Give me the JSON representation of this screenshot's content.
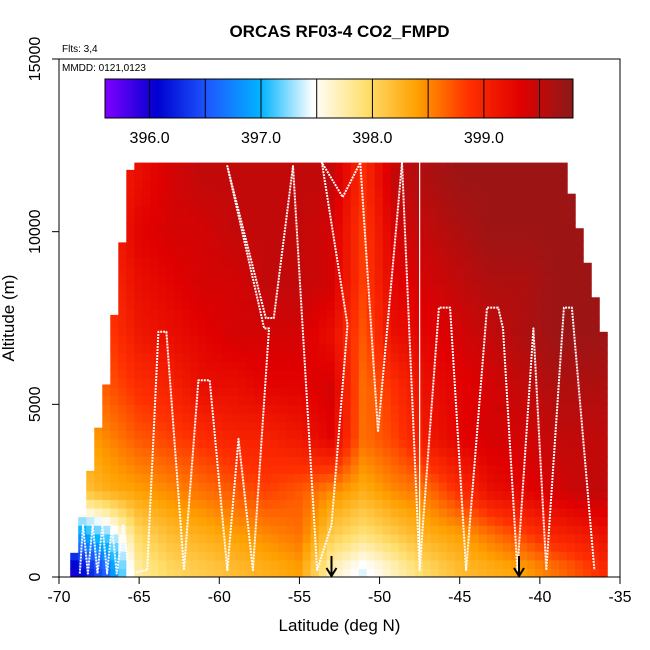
{
  "chart_data": {
    "type": "heatmap",
    "title": "ORCAS RF03-4 CO2_FMPD",
    "flights_note": "Flts: 3,4",
    "date_note": "MMDD: 0121,0123",
    "xlabel": "Latitude (deg N)",
    "ylabel": "Altitude (m)",
    "xlim": [
      -70,
      -35
    ],
    "ylim": [
      0,
      15000
    ],
    "x_ticks": [
      -70,
      -65,
      -60,
      -55,
      -50,
      -45,
      -40,
      -35
    ],
    "x_tick_labels": [
      "-70",
      "-65",
      "-60",
      "-55",
      "-50",
      "-45",
      "-40",
      "-35"
    ],
    "y_ticks": [
      0,
      5000,
      10000,
      15000
    ],
    "y_tick_labels": [
      "0",
      "5000",
      "10000",
      "15000"
    ],
    "grid": false,
    "colorbar": {
      "placement": "top-inside",
      "min": 395.6,
      "max": 399.8,
      "ticks": [
        396.0,
        397.0,
        398.0,
        399.0
      ],
      "tick_labels": [
        "396.0",
        "397.0",
        "398.0",
        "399.0"
      ],
      "colors": [
        "#7f00ff",
        "#0000d0",
        "#1e5aff",
        "#00b4ff",
        "#ffffff",
        "#ffe070",
        "#ffa000",
        "#ff3000",
        "#e00000",
        "#8b1a1a"
      ]
    },
    "field": {
      "x": [
        -69,
        -67,
        -65,
        -63,
        -61,
        -59,
        -57,
        -55,
        -53,
        -51,
        -49,
        -47,
        -45,
        -43,
        -41,
        -39,
        -37,
        -35.5
      ],
      "y": [
        250,
        1250,
        2500,
        4000,
        5500,
        7000,
        8500,
        10000,
        11500
      ],
      "values": [
        [
          396.0,
          396.6,
          397.8,
          398.0,
          398.1,
          398.2,
          398.3,
          398.4,
          397.7,
          397.4,
          397.7,
          398.0,
          398.2,
          398.3,
          398.4,
          398.6,
          398.8,
          399.0
        ],
        [
          396.8,
          397.2,
          398.0,
          398.2,
          398.3,
          398.4,
          398.5,
          398.6,
          398.1,
          397.9,
          398.1,
          398.3,
          398.4,
          398.6,
          398.8,
          399.0,
          399.1,
          399.2
        ],
        [
          398.1,
          398.3,
          398.4,
          398.5,
          398.6,
          398.7,
          398.8,
          398.7,
          398.5,
          398.3,
          398.5,
          398.6,
          398.9,
          399.2,
          399.3,
          399.4,
          399.5,
          399.5
        ],
        [
          398.3,
          398.5,
          398.7,
          398.8,
          398.9,
          399.0,
          399.0,
          399.1,
          399.3,
          398.6,
          398.8,
          399.1,
          399.3,
          399.4,
          399.4,
          399.5,
          399.5,
          399.5
        ],
        [
          398.4,
          398.7,
          398.9,
          399.0,
          399.2,
          399.2,
          399.3,
          399.3,
          399.4,
          398.6,
          398.9,
          399.2,
          399.3,
          399.4,
          399.5,
          399.6,
          399.6,
          399.6
        ],
        [
          398.5,
          398.8,
          399.1,
          399.2,
          399.3,
          399.4,
          399.4,
          399.4,
          399.2,
          398.7,
          399.2,
          399.3,
          399.4,
          399.5,
          399.6,
          399.7,
          399.7,
          399.7
        ],
        [
          398.6,
          398.9,
          399.2,
          399.3,
          399.4,
          399.4,
          399.5,
          399.5,
          399.4,
          398.8,
          399.3,
          399.4,
          399.5,
          399.6,
          399.6,
          399.7,
          399.7,
          399.7
        ],
        [
          398.7,
          399.0,
          399.3,
          399.4,
          399.4,
          399.5,
          399.5,
          399.5,
          399.4,
          398.8,
          399.4,
          399.5,
          399.6,
          399.7,
          399.7,
          399.7,
          399.7,
          399.7
        ],
        [
          398.7,
          399.0,
          399.2,
          399.4,
          399.5,
          399.5,
          399.5,
          399.5,
          399.5,
          398.9,
          399.5,
          399.6,
          399.7,
          399.7,
          399.7,
          399.7,
          399.7,
          399.7
        ]
      ]
    },
    "flight_track": {
      "color": "#ffffff",
      "points": [
        [
          -68.7,
          100
        ],
        [
          -68.5,
          1500
        ],
        [
          -68.2,
          100
        ],
        [
          -67.9,
          1500
        ],
        [
          -67.6,
          100
        ],
        [
          -67.3,
          1500
        ],
        [
          -67.0,
          100
        ],
        [
          -66.7,
          1500
        ],
        [
          -66.4,
          100
        ],
        [
          -66.0,
          1500
        ],
        [
          -65.6,
          100
        ],
        [
          -64.5,
          200
        ],
        [
          -63.8,
          7100
        ],
        [
          -63.3,
          7100
        ],
        [
          -62.2,
          200
        ],
        [
          -61.3,
          5700
        ],
        [
          -60.6,
          5700
        ],
        [
          -59.5,
          200
        ],
        [
          -58.8,
          4000
        ],
        [
          -57.9,
          200
        ],
        [
          -56.9,
          7200
        ],
        [
          -57.2,
          7200
        ],
        [
          -59.5,
          11900
        ],
        [
          -57.1,
          7500
        ],
        [
          -56.6,
          7500
        ],
        [
          -55.4,
          11900
        ],
        [
          -53.9,
          200
        ],
        [
          -53.0,
          1500
        ],
        [
          -52.0,
          7300
        ],
        [
          -53.6,
          12000
        ],
        [
          -52.3,
          11000
        ],
        [
          -51.2,
          12000
        ],
        [
          -50.1,
          4200
        ],
        [
          -48.6,
          12000
        ],
        [
          -47.5,
          200
        ],
        [
          -46.3,
          7800
        ],
        [
          -45.6,
          7800
        ],
        [
          -44.6,
          200
        ],
        [
          -43.3,
          7800
        ],
        [
          -42.6,
          7800
        ],
        [
          -42.3,
          7200
        ],
        [
          -41.4,
          200
        ],
        [
          -40.4,
          7200
        ],
        [
          -39.6,
          200
        ],
        [
          -38.5,
          7800
        ],
        [
          -38.0,
          7800
        ],
        [
          -36.6,
          200
        ]
      ]
    },
    "markers": [
      {
        "lat": -53.0,
        "symbol": "down-arrow"
      },
      {
        "lat": -41.3,
        "symbol": "down-arrow"
      }
    ]
  }
}
